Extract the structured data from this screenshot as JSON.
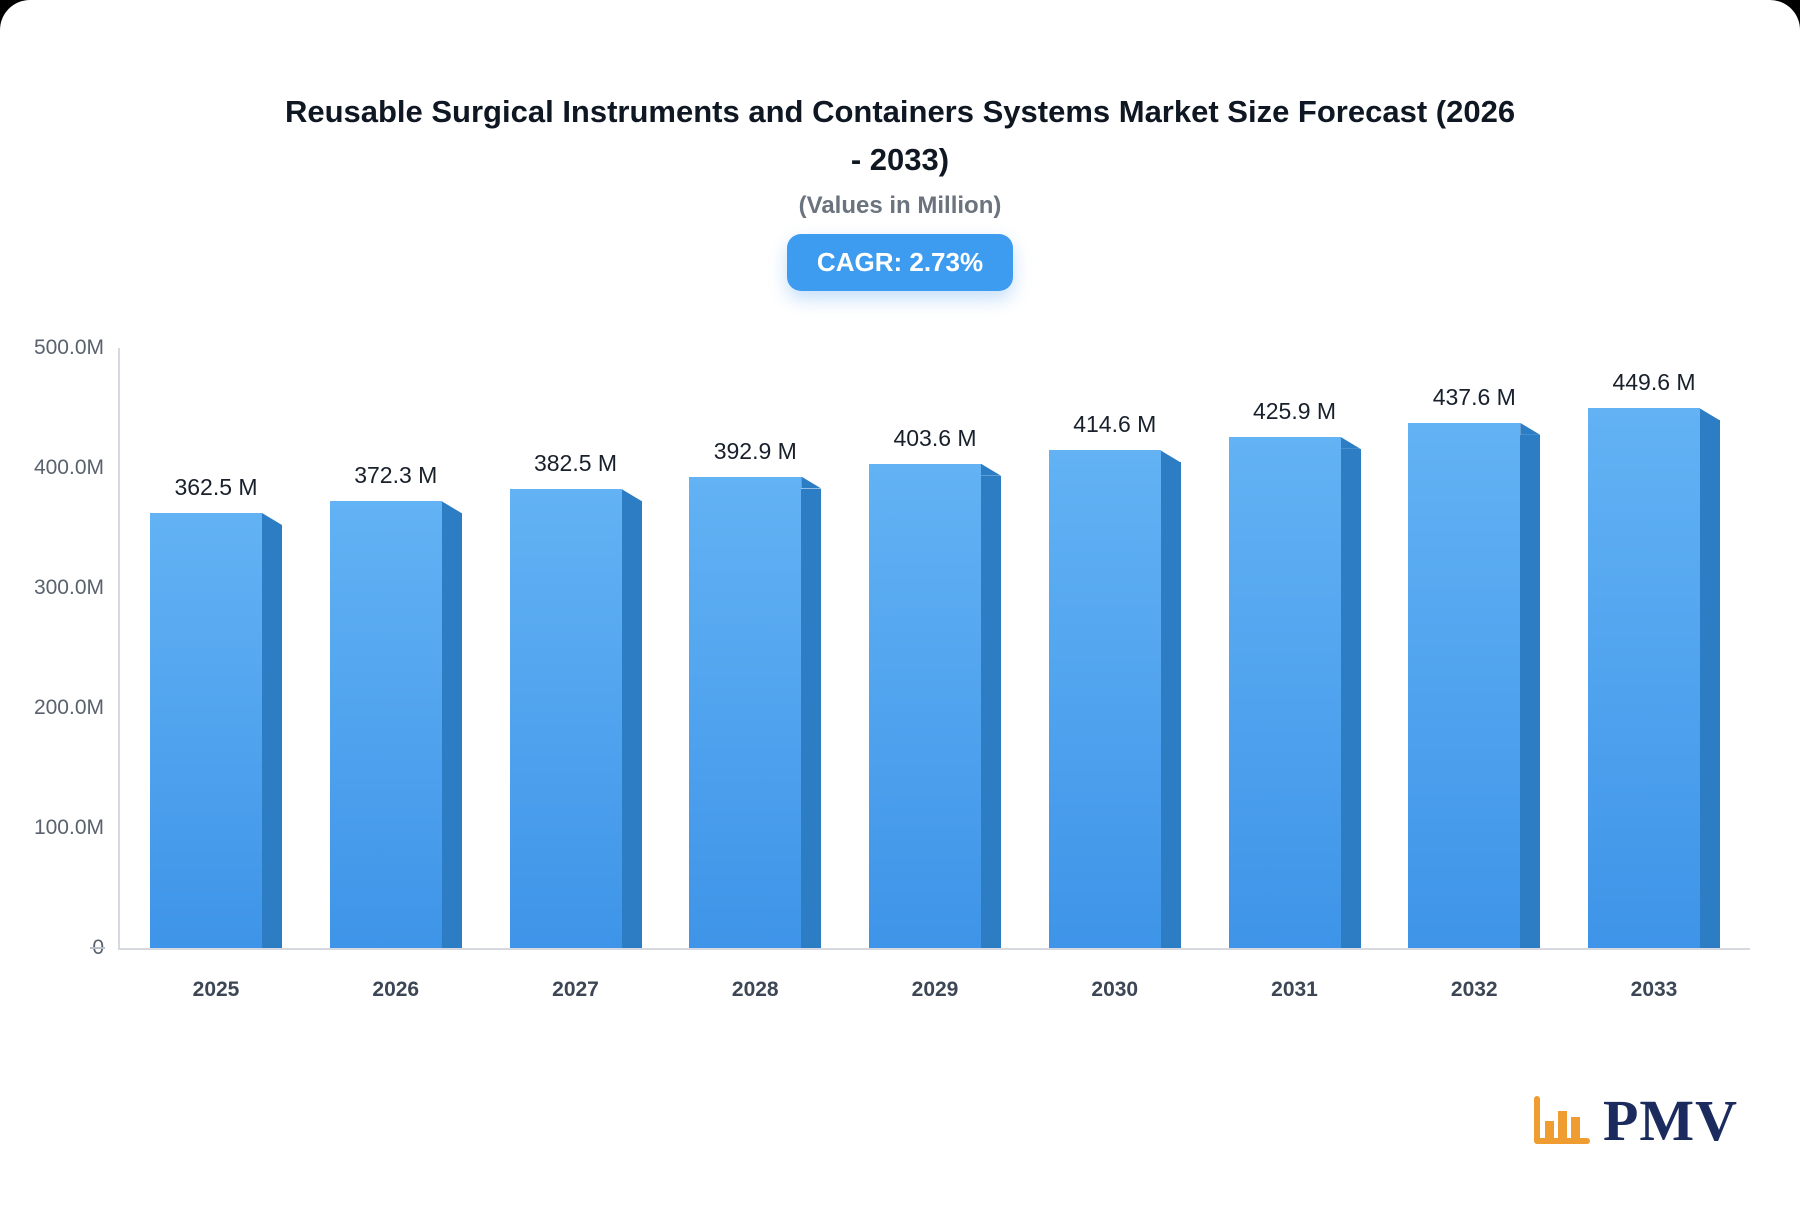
{
  "page": {
    "title_line1": "Reusable Surgical Instruments and Containers Systems Market Size Forecast (2026",
    "title_line2": "- 2033)",
    "subtitle": "(Values in Million)",
    "cagr_badge": "CAGR: 2.73%",
    "logo_text": "PMV"
  },
  "chart_data": {
    "type": "bar",
    "title": "Reusable Surgical Instruments and Containers Systems Market Size Forecast (2026 - 2033)",
    "subtitle": "(Values in Million)",
    "cagr_percent": "2.73%",
    "categories": [
      "2025",
      "2026",
      "2027",
      "2028",
      "2029",
      "2030",
      "2031",
      "2032",
      "2033"
    ],
    "values": [
      362.5,
      372.3,
      382.5,
      392.9,
      403.6,
      414.6,
      425.9,
      437.6,
      449.6
    ],
    "value_labels": [
      "362.5 M",
      "372.3 M",
      "382.5 M",
      "392.9 M",
      "403.6 M",
      "414.6 M",
      "425.9 M",
      "437.6 M",
      "449.6 M"
    ],
    "xlabel": "",
    "ylabel": "",
    "ylim": [
      0,
      500
    ],
    "yticks": [
      {
        "value": 0,
        "label": "0"
      },
      {
        "value": 100,
        "label": "100.0M"
      },
      {
        "value": 200,
        "label": "200.0M"
      },
      {
        "value": 300,
        "label": "300.0M"
      },
      {
        "value": 400,
        "label": "400.0M"
      },
      {
        "value": 500,
        "label": "500.0M"
      }
    ],
    "grid": false,
    "legend": false,
    "colors": {
      "accent": "#3d9cf0",
      "bar_top": "#62b2f4",
      "bar_bottom": "#3e94e8",
      "bar_side": "#2d7dc4",
      "logo_icon": "#ef9c31",
      "logo_text": "#1c2b5e"
    }
  }
}
